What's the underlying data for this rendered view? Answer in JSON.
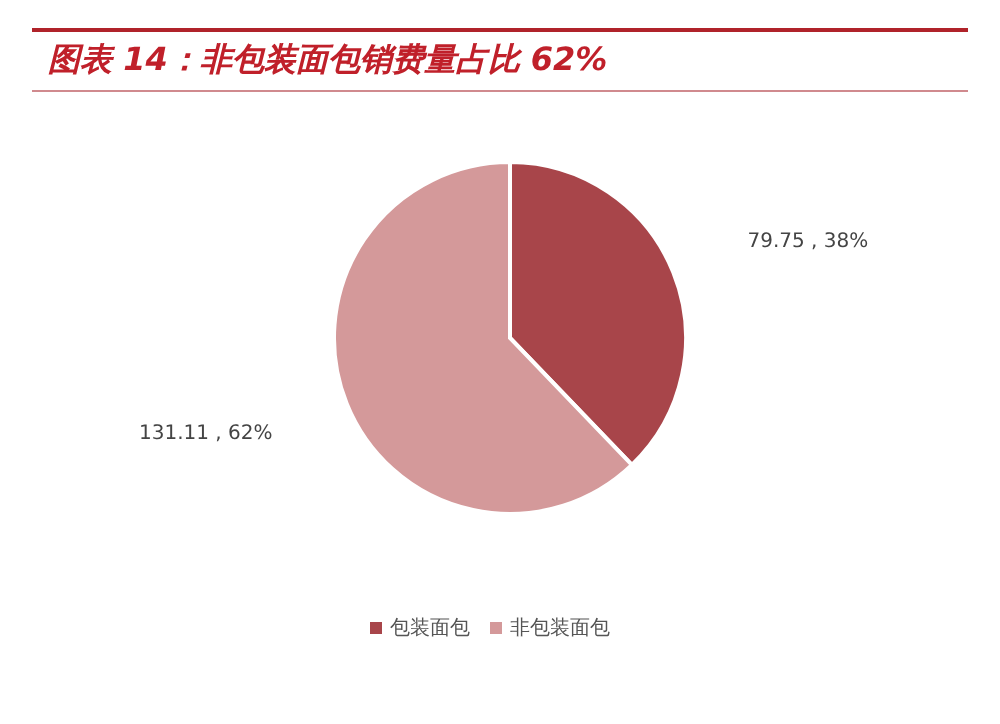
{
  "chart_data": {
    "type": "pie",
    "title": "图表 14：非包装面包销费量占比 62%",
    "categories": [
      "包装面包",
      "非包装面包"
    ],
    "values": [
      79.75,
      131.11
    ],
    "value_labels": [
      "79.75 , 38%",
      "131.11 , 62%"
    ],
    "colors": [
      "#a8454a",
      "#d4999a"
    ],
    "legend": "bottom"
  }
}
